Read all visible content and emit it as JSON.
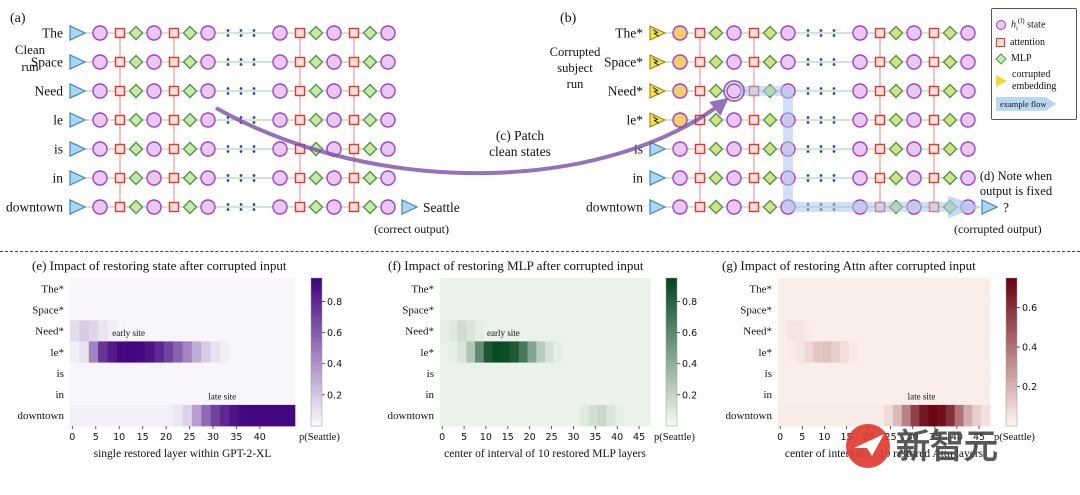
{
  "panels": {
    "a": {
      "label": "(a)",
      "run_label_lines": [
        "Clean",
        "run"
      ],
      "tokens": [
        "The",
        "Space",
        "Need",
        "le",
        "is",
        "in",
        "downtown"
      ],
      "corrupted_flags": [
        false,
        false,
        false,
        false,
        false,
        false,
        false
      ],
      "output_label": "Seattle",
      "output_note": "(correct output)"
    },
    "b": {
      "label": "(b)",
      "run_label_lines": [
        "Corrupted",
        "subject",
        "run"
      ],
      "tokens": [
        "The*",
        "Space*",
        "Need*",
        "le*",
        "is",
        "in",
        "downtown"
      ],
      "corrupted_flags": [
        true,
        true,
        true,
        true,
        false,
        false,
        false
      ],
      "output_label": "?",
      "output_note": "(corrupted output)"
    },
    "c_label_lines": [
      "(c) Patch",
      "clean states"
    ],
    "d_label_lines": [
      "(d) Note when",
      "output is fixed"
    ]
  },
  "legend": {
    "state": {
      "pre": "h",
      "sub": "i",
      "sup": "(l)",
      "post": " state"
    },
    "attention_label": "attention",
    "mlp_label": "MLP",
    "corrupted_label": "corrupted embedding",
    "flow_label": "example flow"
  },
  "watermark": {
    "text": "新智元"
  },
  "colors": {
    "state_fill": "#e9c8f2",
    "state_stroke": "#a13fc9",
    "corrupt_state_fill": "#f2cf6a",
    "attn_fill": "#fde0de",
    "attn_stroke": "#e0382f",
    "mlp_fill": "#cde6b0",
    "mlp_fill_b": "#d6e08a",
    "mlp_stroke": "#4a9a3f",
    "corrupt_fill": "#f6e34b",
    "embed_fill": "#a9d7ef",
    "embed_stroke": "#3e85c0",
    "patch_arrow": "#7b4fa6",
    "flow": "#aac9ea",
    "dots": "#2b4ba0",
    "attn_line": "#ef9a9a",
    "row_line": "#a5c8a5"
  },
  "chart_data": [
    {
      "id": "e",
      "type": "heatmap",
      "title": "(e) Impact of restoring state after corrupted input",
      "rows": [
        "The*",
        "Space*",
        "Need*",
        "le*",
        "is",
        "in",
        "downtown"
      ],
      "xlabel": "single restored layer within GPT-2-XL",
      "plabel": "p(Seattle)",
      "xticks": [
        0,
        5,
        10,
        15,
        20,
        25,
        30,
        35,
        40
      ],
      "x_bin_start": 0,
      "x_bin_step": 2,
      "xlim": [
        0,
        47
      ],
      "vmax": 0.95,
      "colorbar_ticks": [
        0.2,
        0.4,
        0.6,
        0.8
      ],
      "color_low": "#fcfbfd",
      "color_high": "#3f007d",
      "annotations": [
        {
          "text": "early site",
          "x": 12,
          "row": 2.25
        },
        {
          "text": "late site",
          "x": 32,
          "row": 5.25
        }
      ],
      "values": [
        [
          0.02,
          0.02,
          0.02,
          0.02,
          0.02,
          0.02,
          0.02,
          0.02,
          0.02,
          0.02,
          0.02,
          0.02,
          0.02,
          0.02,
          0.02,
          0.02,
          0.02,
          0.02,
          0.02,
          0.02,
          0.02,
          0.02,
          0.02,
          0.02
        ],
        [
          0.02,
          0.02,
          0.02,
          0.02,
          0.02,
          0.02,
          0.02,
          0.02,
          0.02,
          0.02,
          0.02,
          0.02,
          0.02,
          0.02,
          0.02,
          0.02,
          0.02,
          0.02,
          0.02,
          0.02,
          0.02,
          0.02,
          0.02,
          0.02
        ],
        [
          0.12,
          0.18,
          0.14,
          0.09,
          0.05,
          0.03,
          0.02,
          0.02,
          0.02,
          0.02,
          0.02,
          0.02,
          0.02,
          0.02,
          0.02,
          0.02,
          0.02,
          0.02,
          0.02,
          0.02,
          0.02,
          0.02,
          0.02,
          0.02
        ],
        [
          0.05,
          0.1,
          0.45,
          0.75,
          0.85,
          0.92,
          0.93,
          0.92,
          0.88,
          0.8,
          0.7,
          0.58,
          0.45,
          0.3,
          0.18,
          0.1,
          0.05,
          0.02,
          0.02,
          0.02,
          0.02,
          0.02,
          0.02,
          0.02
        ],
        [
          0.02,
          0.02,
          0.02,
          0.02,
          0.02,
          0.02,
          0.02,
          0.02,
          0.02,
          0.02,
          0.02,
          0.02,
          0.02,
          0.02,
          0.02,
          0.02,
          0.02,
          0.02,
          0.02,
          0.02,
          0.02,
          0.02,
          0.02,
          0.02
        ],
        [
          0.02,
          0.02,
          0.02,
          0.02,
          0.02,
          0.02,
          0.02,
          0.02,
          0.02,
          0.02,
          0.02,
          0.02,
          0.02,
          0.02,
          0.02,
          0.02,
          0.02,
          0.02,
          0.02,
          0.02,
          0.02,
          0.02,
          0.02,
          0.02
        ],
        [
          0.04,
          0.04,
          0.04,
          0.04,
          0.04,
          0.04,
          0.04,
          0.04,
          0.04,
          0.04,
          0.04,
          0.08,
          0.15,
          0.35,
          0.55,
          0.7,
          0.8,
          0.88,
          0.92,
          0.93,
          0.93,
          0.93,
          0.93,
          0.93
        ]
      ]
    },
    {
      "id": "f",
      "type": "heatmap",
      "title": "(f) Impact of restoring MLP after corrupted input",
      "rows": [
        "The*",
        "Space*",
        "Need*",
        "le*",
        "is",
        "in",
        "downtown"
      ],
      "xlabel": "center of interval of 10 restored MLP layers",
      "plabel": "p(Seattle)",
      "xticks": [
        0,
        5,
        10,
        15,
        20,
        25,
        30,
        35,
        40,
        45
      ],
      "x_bin_start": 0,
      "x_bin_step": 2,
      "xlim": [
        0,
        47
      ],
      "vmax": 0.95,
      "colorbar_ticks": [
        0.2,
        0.4,
        0.6,
        0.8
      ],
      "color_low": "#f7fcf5",
      "color_high": "#00441b",
      "annotations": [
        {
          "text": "early site",
          "x": 14,
          "row": 2.25
        }
      ],
      "values": [
        [
          0.05,
          0.05,
          0.05,
          0.05,
          0.05,
          0.05,
          0.05,
          0.05,
          0.05,
          0.05,
          0.05,
          0.05,
          0.05,
          0.05,
          0.05,
          0.05,
          0.05,
          0.05,
          0.05,
          0.05,
          0.05,
          0.05,
          0.05,
          0.05
        ],
        [
          0.05,
          0.05,
          0.05,
          0.05,
          0.05,
          0.05,
          0.05,
          0.05,
          0.05,
          0.05,
          0.05,
          0.05,
          0.05,
          0.05,
          0.05,
          0.05,
          0.05,
          0.05,
          0.05,
          0.05,
          0.05,
          0.05,
          0.05,
          0.05
        ],
        [
          0.06,
          0.1,
          0.16,
          0.12,
          0.07,
          0.05,
          0.05,
          0.05,
          0.05,
          0.05,
          0.05,
          0.05,
          0.05,
          0.05,
          0.05,
          0.05,
          0.05,
          0.05,
          0.05,
          0.05,
          0.05,
          0.05,
          0.05,
          0.05
        ],
        [
          0.05,
          0.06,
          0.12,
          0.28,
          0.58,
          0.85,
          0.92,
          0.9,
          0.84,
          0.68,
          0.45,
          0.25,
          0.13,
          0.07,
          0.05,
          0.05,
          0.05,
          0.05,
          0.05,
          0.05,
          0.05,
          0.05,
          0.05,
          0.05
        ],
        [
          0.05,
          0.05,
          0.05,
          0.05,
          0.05,
          0.05,
          0.05,
          0.05,
          0.05,
          0.05,
          0.05,
          0.05,
          0.05,
          0.05,
          0.05,
          0.05,
          0.05,
          0.05,
          0.05,
          0.05,
          0.05,
          0.05,
          0.05,
          0.05
        ],
        [
          0.05,
          0.05,
          0.05,
          0.05,
          0.05,
          0.05,
          0.05,
          0.05,
          0.05,
          0.05,
          0.05,
          0.05,
          0.05,
          0.05,
          0.05,
          0.05,
          0.05,
          0.05,
          0.05,
          0.05,
          0.05,
          0.05,
          0.05,
          0.05
        ],
        [
          0.05,
          0.05,
          0.05,
          0.05,
          0.05,
          0.05,
          0.05,
          0.05,
          0.05,
          0.05,
          0.05,
          0.05,
          0.05,
          0.05,
          0.05,
          0.05,
          0.09,
          0.15,
          0.18,
          0.11,
          0.06,
          0.05,
          0.05,
          0.05
        ]
      ]
    },
    {
      "id": "g",
      "type": "heatmap",
      "title": "(g) Impact of restoring Attn after corrupted input",
      "rows": [
        "The*",
        "Space*",
        "Need*",
        "le*",
        "is",
        "in",
        "downtown"
      ],
      "xlabel": "center of interval of 10 restored Attn layers",
      "plabel": "p(Seattle)",
      "xticks": [
        0,
        5,
        10,
        15,
        20,
        25,
        30,
        35,
        40,
        45
      ],
      "x_bin_start": 0,
      "x_bin_step": 2,
      "xlim": [
        0,
        47
      ],
      "vmax": 0.75,
      "colorbar_ticks": [
        0.2,
        0.4,
        0.6
      ],
      "color_low": "#fff5f0",
      "color_high": "#67000d",
      "annotations": [
        {
          "text": "late site",
          "x": 32,
          "row": 5.25
        }
      ],
      "values": [
        [
          0.02,
          0.02,
          0.02,
          0.02,
          0.02,
          0.02,
          0.02,
          0.02,
          0.02,
          0.02,
          0.02,
          0.02,
          0.02,
          0.02,
          0.02,
          0.02,
          0.02,
          0.02,
          0.02,
          0.02,
          0.02,
          0.02,
          0.02,
          0.02
        ],
        [
          0.02,
          0.02,
          0.02,
          0.02,
          0.02,
          0.02,
          0.02,
          0.02,
          0.02,
          0.02,
          0.02,
          0.02,
          0.02,
          0.02,
          0.02,
          0.02,
          0.02,
          0.02,
          0.02,
          0.02,
          0.02,
          0.02,
          0.02,
          0.02
        ],
        [
          0.02,
          0.05,
          0.05,
          0.03,
          0.02,
          0.02,
          0.02,
          0.02,
          0.02,
          0.02,
          0.02,
          0.02,
          0.02,
          0.02,
          0.02,
          0.02,
          0.02,
          0.02,
          0.02,
          0.02,
          0.02,
          0.02,
          0.02,
          0.02
        ],
        [
          0.02,
          0.03,
          0.05,
          0.09,
          0.14,
          0.16,
          0.12,
          0.07,
          0.04,
          0.02,
          0.02,
          0.02,
          0.02,
          0.02,
          0.02,
          0.02,
          0.02,
          0.02,
          0.02,
          0.02,
          0.02,
          0.02,
          0.02,
          0.02
        ],
        [
          0.02,
          0.02,
          0.02,
          0.02,
          0.02,
          0.02,
          0.02,
          0.02,
          0.02,
          0.02,
          0.02,
          0.02,
          0.02,
          0.02,
          0.02,
          0.02,
          0.02,
          0.02,
          0.02,
          0.02,
          0.02,
          0.02,
          0.02,
          0.02
        ],
        [
          0.02,
          0.02,
          0.02,
          0.02,
          0.02,
          0.02,
          0.02,
          0.02,
          0.02,
          0.02,
          0.02,
          0.02,
          0.02,
          0.02,
          0.02,
          0.02,
          0.02,
          0.02,
          0.02,
          0.02,
          0.02,
          0.02,
          0.02,
          0.02
        ],
        [
          0.03,
          0.03,
          0.03,
          0.03,
          0.03,
          0.03,
          0.03,
          0.03,
          0.03,
          0.03,
          0.03,
          0.03,
          0.08,
          0.18,
          0.35,
          0.55,
          0.68,
          0.73,
          0.7,
          0.6,
          0.4,
          0.22,
          0.12,
          0.06
        ]
      ]
    }
  ]
}
